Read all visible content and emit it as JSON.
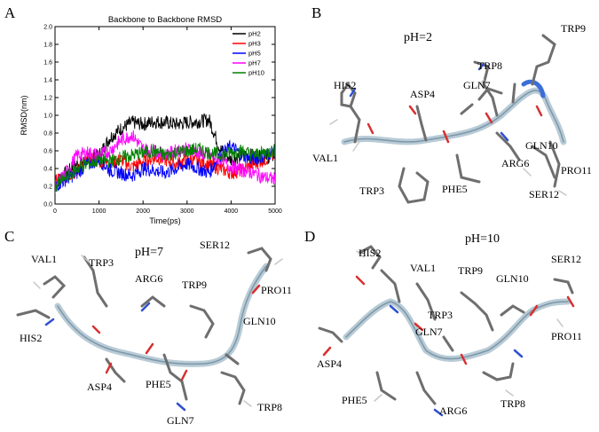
{
  "panels": {
    "a": {
      "letter": "A"
    },
    "b": {
      "letter": "B",
      "ph_label": "pH=2",
      "residues": [
        "HIS2",
        "ASP4",
        "TRP8",
        "TRP9",
        "GLN7",
        "VAL1",
        "TRP3",
        "PHE5",
        "ARG6",
        "GLN10",
        "PRO11",
        "SER12"
      ]
    },
    "c": {
      "letter": "C",
      "ph_label": "pH=7",
      "residues": [
        "VAL1",
        "TRP3",
        "ARG6",
        "TRP9",
        "SER12",
        "PRO11",
        "GLN10",
        "HIS2",
        "ASP4",
        "PHE5",
        "GLN7",
        "TRP8"
      ]
    },
    "d": {
      "letter": "D",
      "ph_label": "pH=10",
      "residues": [
        "HIS2",
        "VAL1",
        "TRP9",
        "SER12",
        "GLN10",
        "TRP3",
        "GLN7",
        "PRO11",
        "ASP4",
        "PHE5",
        "ARG6",
        "TRP8"
      ]
    }
  },
  "chart_data": {
    "type": "line",
    "title": "Backbone to Backbone  RMSD",
    "xlabel": "Time(ps)",
    "ylabel": "RMSD(nm)",
    "xlim": [
      0,
      5000
    ],
    "ylim": [
      0,
      2.0
    ],
    "xticks": [
      0,
      1000,
      2000,
      3000,
      4000,
      5000
    ],
    "yticks": [
      0.0,
      0.2,
      0.4,
      0.6,
      0.8,
      1.0,
      1.2,
      1.4,
      1.6,
      1.8,
      2.0
    ],
    "legend_position": "top-right",
    "series": [
      {
        "name": "pH2",
        "color": "#000000",
        "x": [
          0,
          250,
          500,
          750,
          1000,
          1250,
          1500,
          1750,
          2000,
          2250,
          2500,
          2750,
          3000,
          3250,
          3500,
          3750,
          4000,
          4250,
          4500,
          4750,
          5000
        ],
        "values": [
          0.25,
          0.35,
          0.45,
          0.5,
          0.55,
          0.75,
          0.85,
          0.92,
          0.9,
          0.93,
          0.92,
          0.9,
          0.92,
          0.93,
          0.95,
          0.62,
          0.5,
          0.55,
          0.55,
          0.52,
          0.55
        ]
      },
      {
        "name": "pH3",
        "color": "#ff0000",
        "x": [
          0,
          250,
          500,
          750,
          1000,
          1250,
          1500,
          1750,
          2000,
          2250,
          2500,
          2750,
          3000,
          3250,
          3500,
          3750,
          4000,
          4250,
          4500,
          4750,
          5000
        ],
        "values": [
          0.25,
          0.3,
          0.38,
          0.5,
          0.48,
          0.45,
          0.5,
          0.42,
          0.48,
          0.52,
          0.5,
          0.45,
          0.5,
          0.48,
          0.45,
          0.4,
          0.35,
          0.38,
          0.45,
          0.5,
          0.55
        ]
      },
      {
        "name": "pH5",
        "color": "#0000ff",
        "x": [
          0,
          250,
          500,
          750,
          1000,
          1250,
          1500,
          1750,
          2000,
          2250,
          2500,
          2750,
          3000,
          3250,
          3500,
          3750,
          4000,
          4250,
          4500,
          4750,
          5000
        ],
        "values": [
          0.2,
          0.28,
          0.35,
          0.45,
          0.5,
          0.38,
          0.35,
          0.32,
          0.4,
          0.38,
          0.35,
          0.4,
          0.45,
          0.4,
          0.35,
          0.55,
          0.65,
          0.55,
          0.5,
          0.55,
          0.6
        ]
      },
      {
        "name": "pH7",
        "color": "#ff00ff",
        "x": [
          0,
          250,
          500,
          750,
          1000,
          1250,
          1500,
          1750,
          2000,
          2250,
          2500,
          2750,
          3000,
          3250,
          3500,
          3750,
          4000,
          4250,
          4500,
          4750,
          5000
        ],
        "values": [
          0.2,
          0.35,
          0.55,
          0.58,
          0.55,
          0.6,
          0.72,
          0.78,
          0.62,
          0.6,
          0.55,
          0.6,
          0.62,
          0.58,
          0.55,
          0.5,
          0.42,
          0.38,
          0.35,
          0.3,
          0.28
        ]
      },
      {
        "name": "pH10",
        "color": "#008000",
        "x": [
          0,
          250,
          500,
          750,
          1000,
          1250,
          1500,
          1750,
          2000,
          2250,
          2500,
          2750,
          3000,
          3250,
          3500,
          3750,
          4000,
          4250,
          4500,
          4750,
          5000
        ],
        "values": [
          0.2,
          0.3,
          0.4,
          0.45,
          0.5,
          0.48,
          0.52,
          0.55,
          0.58,
          0.6,
          0.55,
          0.58,
          0.6,
          0.62,
          0.58,
          0.55,
          0.58,
          0.6,
          0.55,
          0.58,
          0.6
        ]
      }
    ]
  }
}
